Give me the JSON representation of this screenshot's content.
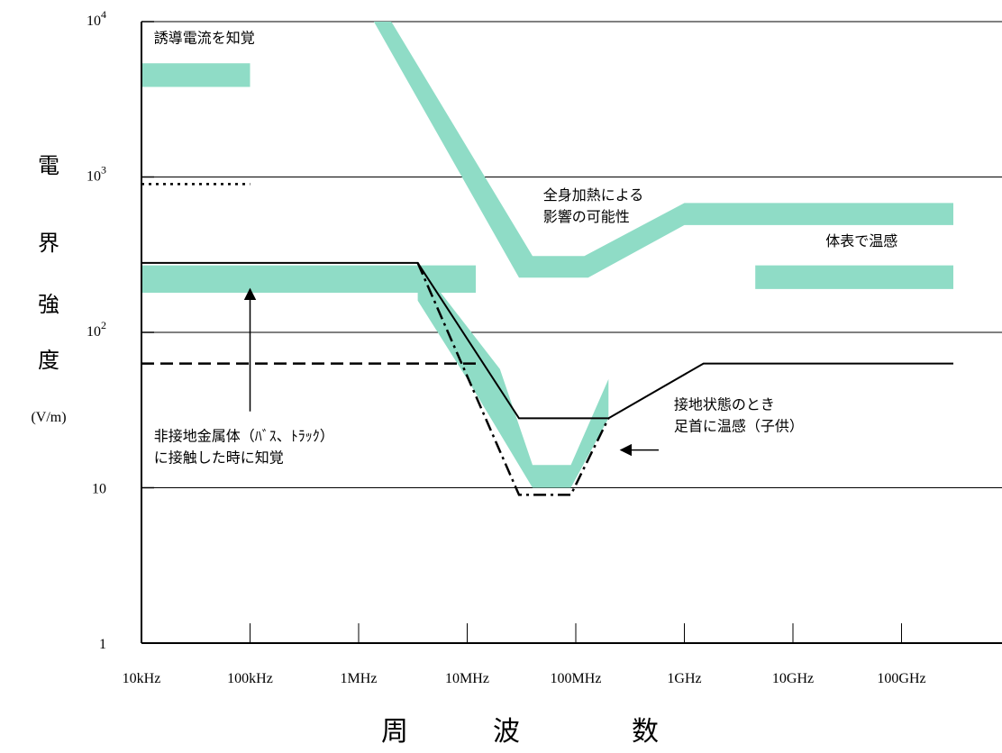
{
  "chart_data": {
    "type": "line",
    "x_scale": "log",
    "y_scale": "log",
    "x_unit": "Hz",
    "y_unit": "V/m",
    "xlim": [
      10000,
      10000000000000
    ],
    "ylim": [
      1,
      10000
    ],
    "grid": "horizontal",
    "x_ticks": [
      {
        "value": 10000,
        "label": "10kHz"
      },
      {
        "value": 100000,
        "label": "100kHz"
      },
      {
        "value": 1000000,
        "label": "1MHz"
      },
      {
        "value": 10000000,
        "label": "10MHz"
      },
      {
        "value": 100000000,
        "label": "100MHz"
      },
      {
        "value": 1000000000,
        "label": "1GHz"
      },
      {
        "value": 10000000000,
        "label": "10GHz"
      },
      {
        "value": 100000000000,
        "label": "100GHz"
      }
    ],
    "y_ticks": [
      {
        "value": 1,
        "base": "1",
        "exp": ""
      },
      {
        "value": 10,
        "base": "10",
        "exp": ""
      },
      {
        "value": 100,
        "base": "10",
        "exp": "2"
      },
      {
        "value": 1000,
        "base": "10",
        "exp": "3"
      },
      {
        "value": 10000,
        "base": "10",
        "exp": "4"
      }
    ],
    "y_name_chars": [
      "電",
      "界",
      "強",
      "度"
    ],
    "y_unit_label": "(V/m)",
    "x_name_chars": [
      "周",
      "波",
      "数"
    ],
    "bands": [
      {
        "id": "induced-current",
        "label": "誘導電流を知覚",
        "color": "#8fdcc6",
        "points": [
          [
            10000,
            5400
          ],
          [
            100000,
            5400
          ],
          [
            100000,
            3800
          ],
          [
            10000,
            3800
          ]
        ]
      },
      {
        "id": "ungrounded-metal",
        "color": "#8fdcc6",
        "points": [
          [
            10000,
            270
          ],
          [
            12000000,
            270
          ],
          [
            12000000,
            180
          ],
          [
            10000,
            180
          ]
        ]
      },
      {
        "id": "whole-body",
        "color": "#8fdcc6",
        "points": [
          [
            1380000,
            10000
          ],
          [
            2000000,
            10000
          ],
          [
            40000000,
            310
          ],
          [
            120000000,
            310
          ],
          [
            1000000000,
            680
          ],
          [
            300000000000,
            680
          ],
          [
            300000000000,
            490
          ],
          [
            1000000000,
            490
          ],
          [
            130000000,
            225
          ],
          [
            30000000,
            225
          ]
        ]
      },
      {
        "id": "ankle-warmth",
        "color": "#8fdcc6",
        "points": [
          [
            3500000,
            160
          ],
          [
            3500000,
            280
          ],
          [
            20000000,
            58
          ],
          [
            40000000,
            14
          ],
          [
            90000000,
            14
          ],
          [
            200000000,
            50
          ],
          [
            200000000,
            28
          ],
          [
            90000000,
            10
          ],
          [
            40000000,
            10
          ],
          [
            10000000,
            50
          ]
        ]
      },
      {
        "id": "body-surface-warmth",
        "color": "#8fdcc6",
        "points": [
          [
            4500000000,
            270
          ],
          [
            300000000000,
            270
          ],
          [
            300000000000,
            190
          ],
          [
            4500000000,
            190
          ]
        ]
      }
    ],
    "series": [
      {
        "id": "upper-solid-limit",
        "style": "solid",
        "points": [
          [
            10000,
            280
          ],
          [
            3500000,
            280
          ],
          [
            30000000,
            28
          ],
          [
            200000000,
            28
          ],
          [
            1500000000,
            63
          ],
          [
            300000000000,
            63
          ]
        ]
      },
      {
        "id": "dashed-limit",
        "style": "dashed",
        "points": [
          [
            10000,
            63
          ],
          [
            12000000,
            63
          ]
        ]
      },
      {
        "id": "dotted-limit",
        "style": "dotted",
        "points": [
          [
            10000,
            900
          ],
          [
            100000,
            900
          ]
        ]
      },
      {
        "id": "dashdot-limit",
        "style": "dashdot",
        "points": [
          [
            3500000,
            280
          ],
          [
            30000000,
            9
          ],
          [
            90000000,
            9
          ],
          [
            200000000,
            28
          ]
        ]
      }
    ],
    "annotations": [
      {
        "id": "induced-current-label",
        "lines": [
          "誘導電流を知覚"
        ],
        "x": 13000,
        "y": 7300
      },
      {
        "id": "whole-body-label",
        "lines": [
          "全身加熱による",
          "影響の可能性"
        ],
        "x": 50000000,
        "y": 710
      },
      {
        "id": "body-surface-label",
        "lines": [
          "体表で温感"
        ],
        "x": 20000000000,
        "y": 360
      },
      {
        "id": "ungrounded-metal-label",
        "lines": [
          "非接地金属体（ﾊﾞｽ、ﾄﾗｯｸ）",
          "に接触した時に知覚"
        ],
        "x": 13000,
        "y": 20
      },
      {
        "id": "grounded-label",
        "lines": [
          "接地状態のとき",
          "足首に温感（子供）"
        ],
        "x": 800000000,
        "y": 32
      }
    ],
    "arrows": [
      {
        "id": "up-arrow",
        "from": [
          100000,
          31
        ],
        "to": [
          100000,
          190
        ]
      },
      {
        "id": "left-arrow",
        "from": [
          580000000,
          17.5
        ],
        "to": [
          260000000,
          17.5
        ]
      }
    ]
  }
}
